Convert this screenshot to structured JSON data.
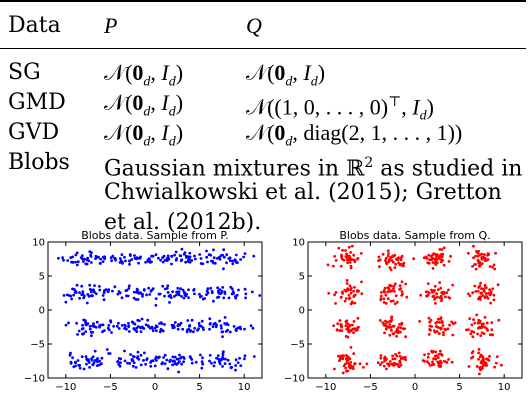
{
  "table": {
    "headers": [
      "Data",
      "P",
      "Q"
    ],
    "rows": [
      {
        "name": "SG",
        "p": "𝒩(𝟎_d, I_d)",
        "q": "𝒩(𝟎_d, I_d)"
      },
      {
        "name": "GMD",
        "p": "𝒩(𝟎_d, I_d)",
        "q": "𝒩((1, 0, . . . , 0)^⊤, I_d)"
      },
      {
        "name": "GVD",
        "p": "𝒩(𝟎_d, I_d)",
        "q": "𝒩(𝟎_d, diag(2, 1, . . . , 1))"
      },
      {
        "name": "Blobs",
        "desc_line1": "Gaussian mixtures in ℝ² as studied in",
        "desc_line2": "Chwialkowski   et   al.   (2015);   Gretton",
        "desc_line3": "et al. (2012b)."
      }
    ]
  },
  "plots": [
    {
      "title": "Blobs data. Sample from P.",
      "color": "#0000ff",
      "pattern": "stretched"
    },
    {
      "title": "Blobs data. Sample from Q.",
      "color": "#ff0000",
      "pattern": "blobs"
    }
  ],
  "chart_data": [
    {
      "type": "scatter",
      "title": "Blobs data. Sample from P.",
      "xlim": [
        -12,
        12
      ],
      "ylim": [
        -10,
        10
      ],
      "xticks": [
        "−10",
        "−5",
        "0",
        "5",
        "10"
      ],
      "yticks": [
        "10",
        "5",
        "0",
        "−5",
        "−10"
      ],
      "description_of_data": "4x4 grid of Gaussian blobs centered at (-7.5,-2.5,2.5,7.5) each axis; clusters horizontally stretched",
      "centers_x": [
        -7.5,
        -2.5,
        2.5,
        7.5
      ],
      "centers_y": [
        -7.5,
        -2.5,
        2.5,
        7.5
      ],
      "color": "#0000ff"
    },
    {
      "type": "scatter",
      "title": "Blobs data. Sample from Q.",
      "xlim": [
        -12,
        12
      ],
      "ylim": [
        -10,
        10
      ],
      "xticks": [
        "−10",
        "−5",
        "0",
        "5",
        "10"
      ],
      "yticks": [
        "10",
        "5",
        "0",
        "−5",
        "−10"
      ],
      "description_of_data": "4x4 grid of isotropic Gaussian blobs",
      "centers_x": [
        -7.5,
        -2.5,
        2.5,
        7.5
      ],
      "centers_y": [
        -7.5,
        -2.5,
        2.5,
        7.5
      ],
      "color": "#ff0000"
    }
  ]
}
